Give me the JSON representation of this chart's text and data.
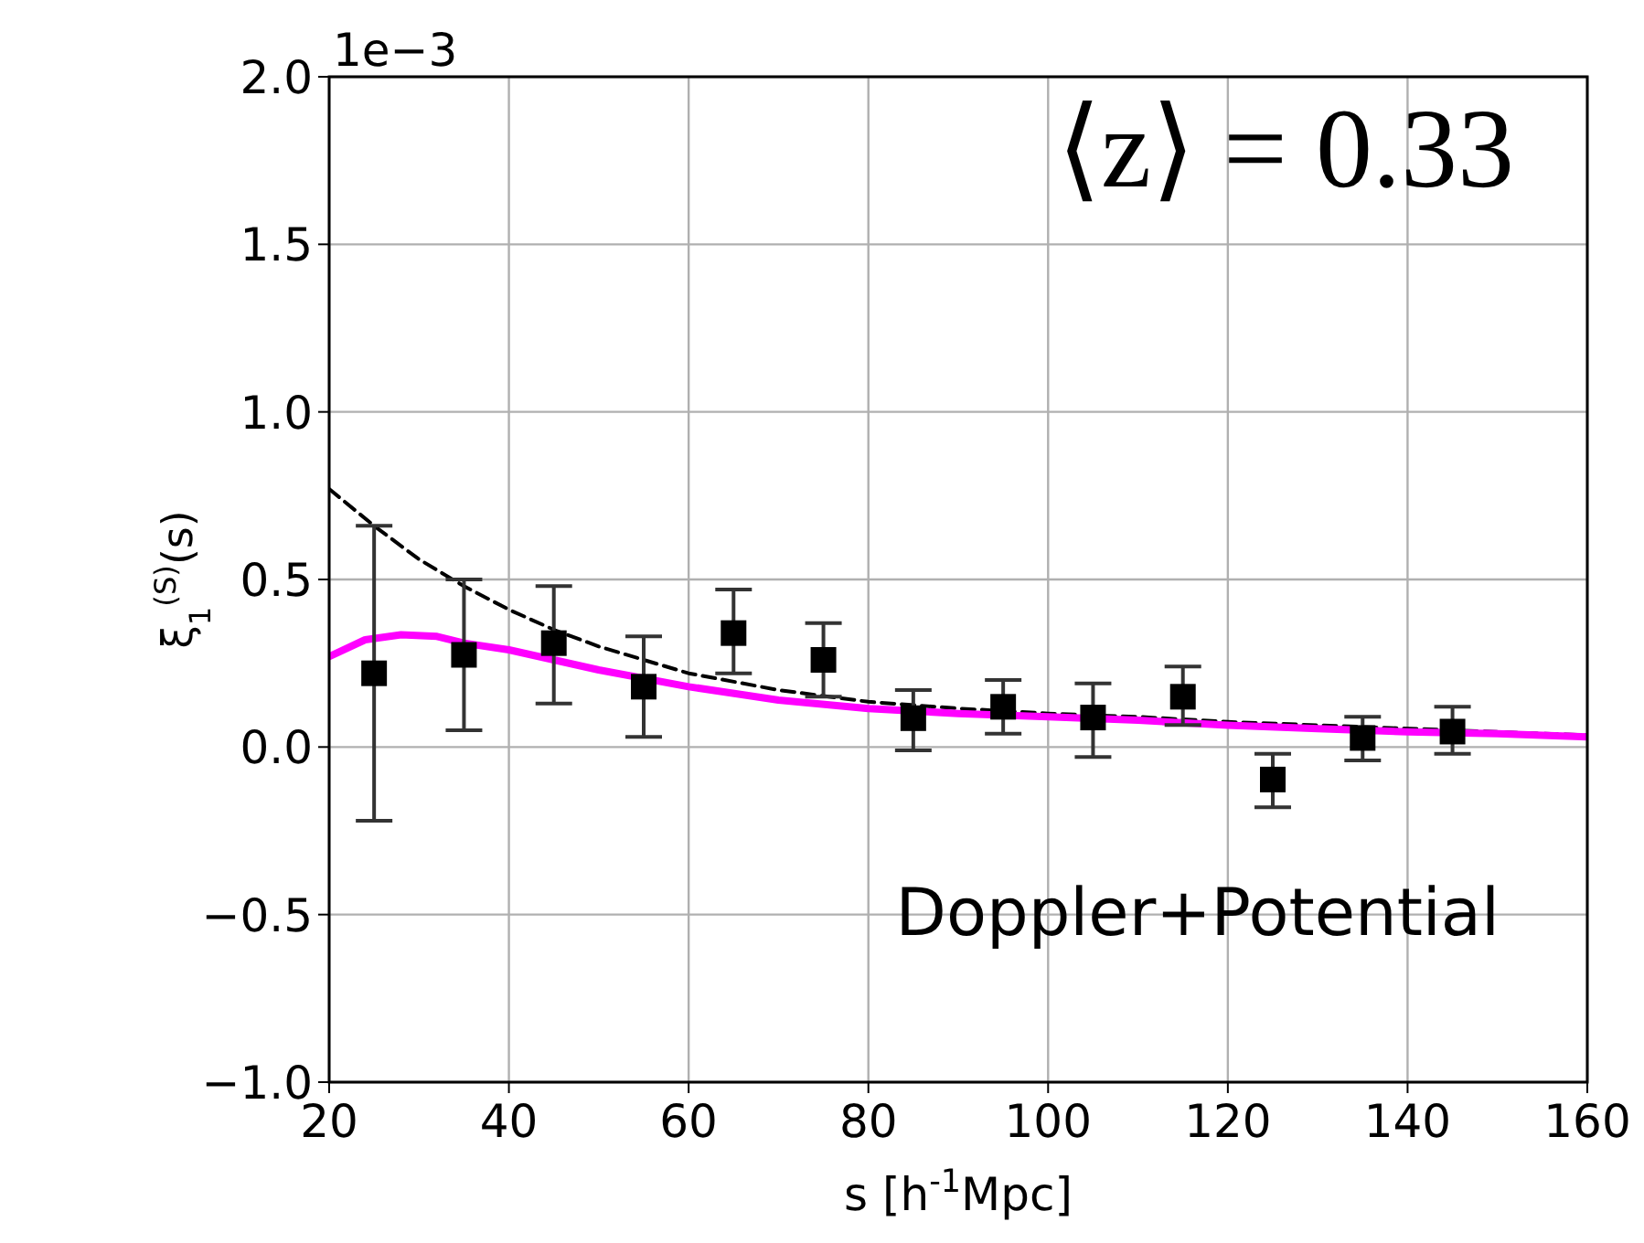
{
  "chart_data": {
    "type": "scatter",
    "xlabel": "s [h$^{-1}$Mpc]",
    "ylabel": "ξ$_{1}$$^{(S)}$(s)",
    "annotations": [
      "1e−3",
      "⟨z⟩ = 0.33",
      "Doppler+Potential"
    ],
    "xlim": [
      20,
      160
    ],
    "xticks": [
      20,
      40,
      60,
      80,
      100,
      120,
      140,
      160
    ],
    "ylim": [
      -1.0,
      2.0
    ],
    "yticks": [
      {
        "value": -1,
        "label": "−1.0"
      },
      {
        "value": -0.5,
        "label": "−0.5"
      },
      {
        "value": 0,
        "label": "0.0"
      },
      {
        "value": 0.5,
        "label": "0.5"
      },
      {
        "value": 1,
        "label": "1.0"
      },
      {
        "value": 1.5,
        "label": "1.5"
      },
      {
        "value": 2,
        "label": "2.0"
      }
    ],
    "grid": true,
    "series": [
      {
        "type": "line",
        "color": "#000000",
        "line_style": "dashed",
        "marker": "none",
        "x": [
          20,
          25,
          30,
          35,
          40,
          45,
          50,
          60,
          70,
          80,
          90,
          100,
          110,
          120,
          130,
          140,
          160
        ],
        "values": [
          0.77,
          0.66,
          0.56,
          0.48,
          0.41,
          0.35,
          0.3,
          0.22,
          0.17,
          0.135,
          0.115,
          0.1,
          0.09,
          0.075,
          null,
          null,
          0.035
        ]
      },
      {
        "type": "line",
        "color": "#ff00ff",
        "line_style": "solid",
        "marker": "none",
        "x": [
          20,
          24,
          28,
          32,
          35,
          40,
          50,
          60,
          70,
          80,
          90,
          100,
          110,
          120,
          130,
          140,
          150,
          160
        ],
        "values": [
          0.27,
          0.32,
          0.335,
          0.33,
          0.31,
          0.29,
          0.23,
          0.18,
          0.14,
          0.115,
          0.1,
          0.09,
          0.08,
          0.065,
          0.055,
          0.045,
          0.04,
          0.03
        ]
      },
      {
        "color": "#000000",
        "marker": "square",
        "x": [
          25,
          35,
          45,
          55,
          65,
          75,
          85,
          95,
          105,
          115,
          125,
          135,
          145
        ],
        "values": [
          0.22,
          0.275,
          0.31,
          0.18,
          0.34,
          0.26,
          0.086,
          0.12,
          0.088,
          0.15,
          -0.097,
          0.027,
          0.046
        ],
        "errors": [
          [
            -0.22,
            0.66
          ],
          [
            0.05,
            0.5
          ],
          [
            0.13,
            0.48
          ],
          [
            0.03,
            0.33
          ],
          [
            0.22,
            0.47
          ],
          [
            0.15,
            0.37
          ],
          [
            -0.01,
            0.17
          ],
          [
            0.04,
            0.2
          ],
          [
            -0.03,
            0.19
          ],
          [
            0.066,
            0.24
          ],
          [
            -0.18,
            -0.02
          ],
          [
            -0.04,
            0.09
          ],
          [
            -0.02,
            0.12
          ]
        ]
      }
    ]
  }
}
